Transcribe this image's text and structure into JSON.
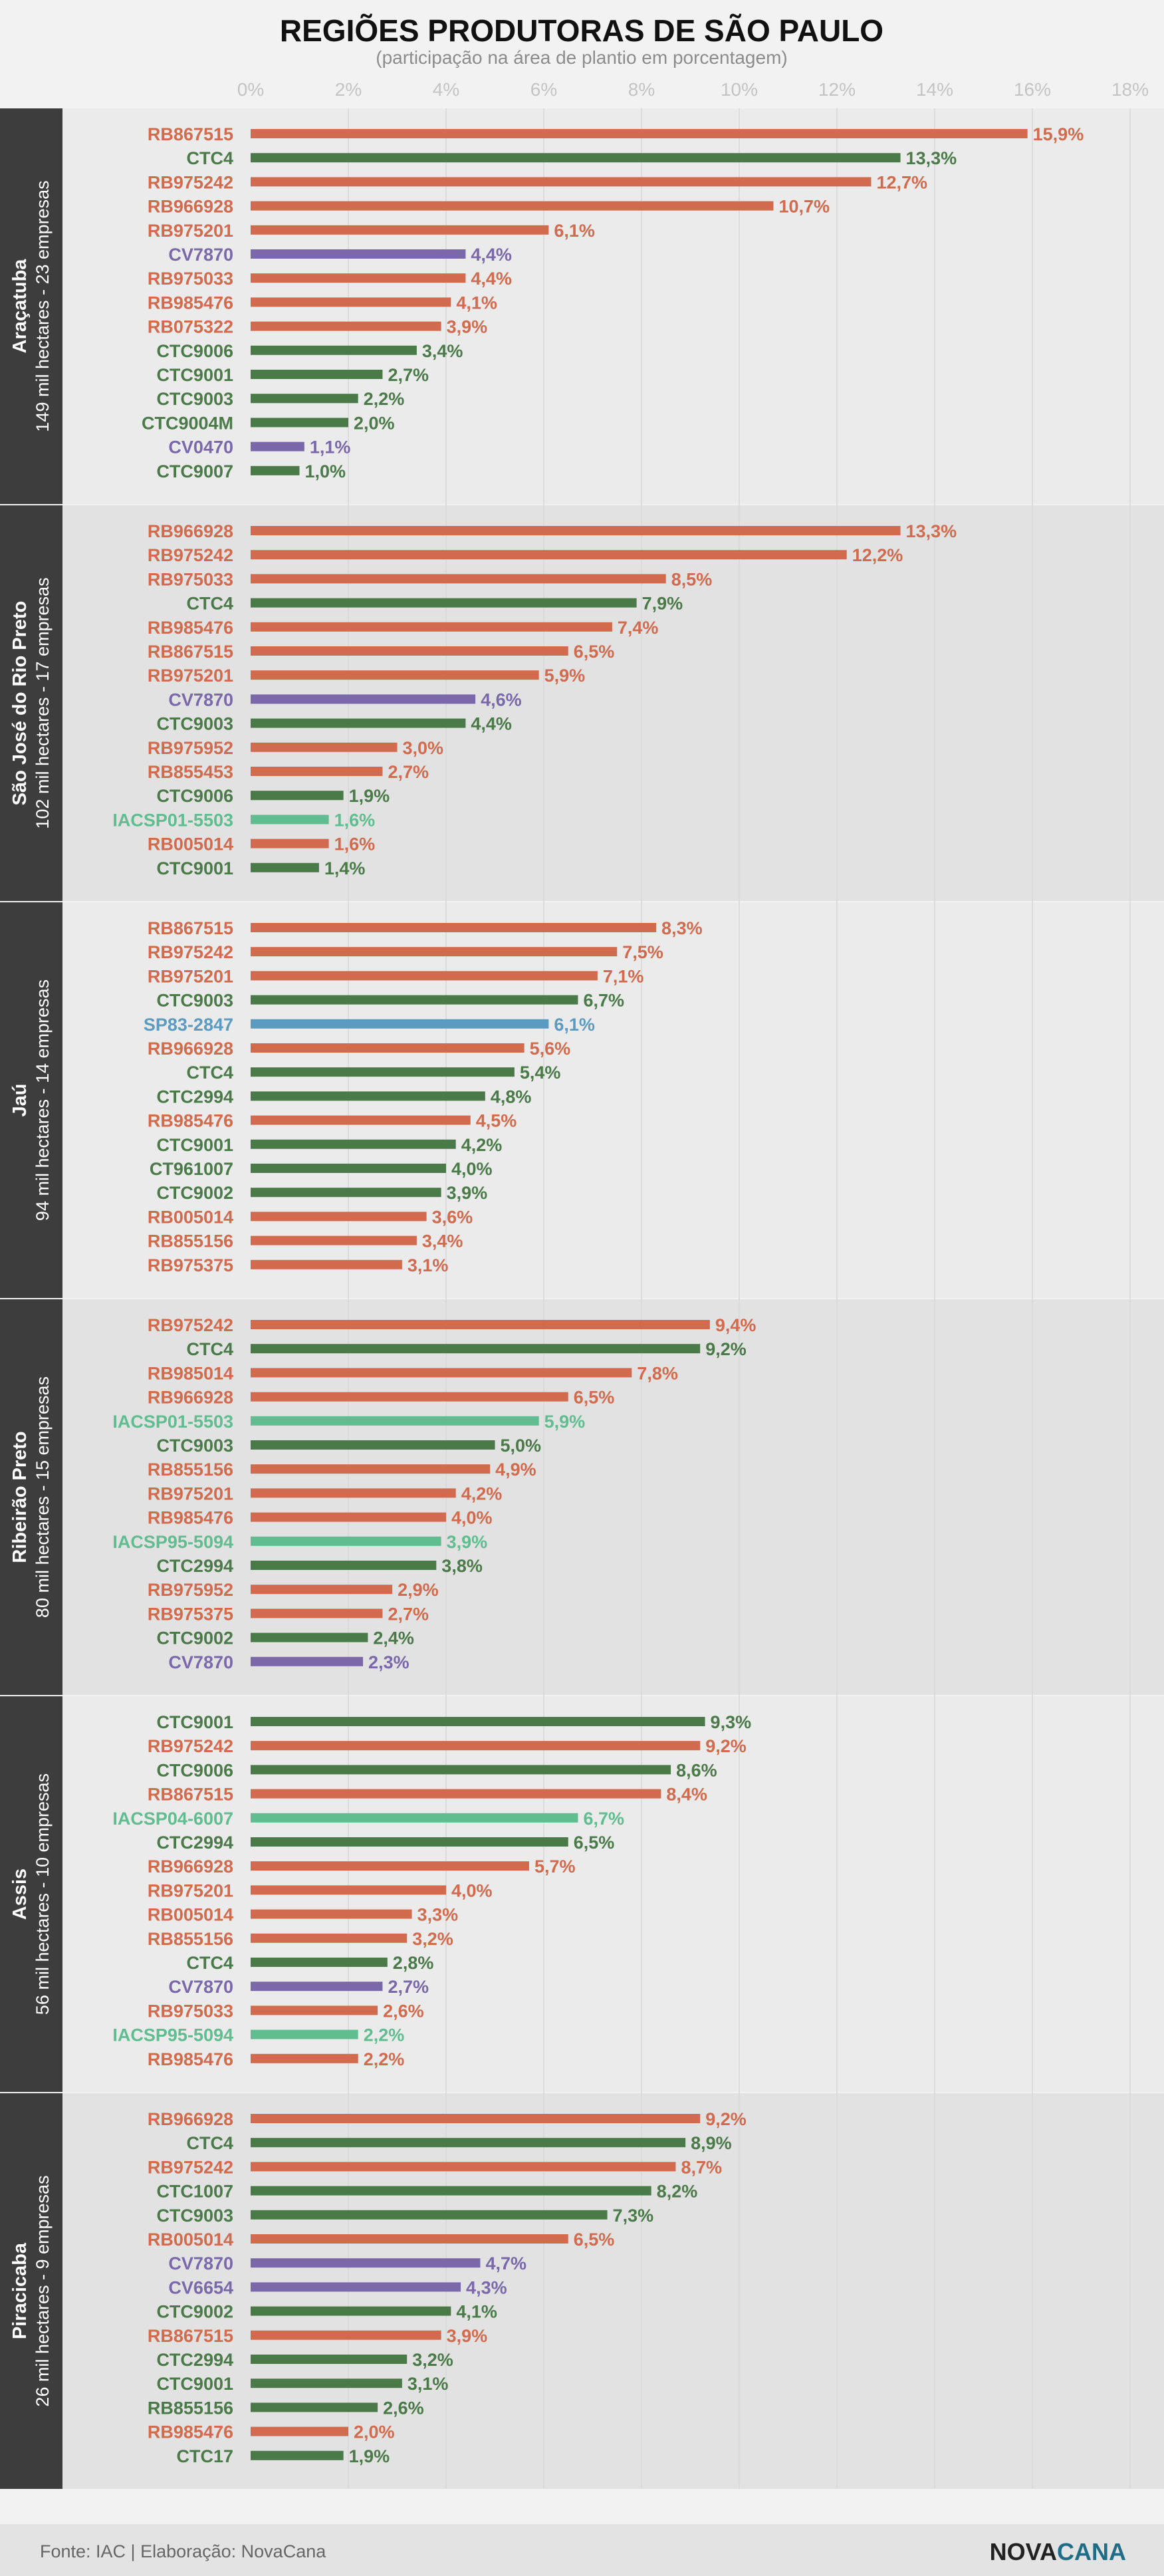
{
  "title": "REGIÕES PRODUTORAS DE SÃO PAULO",
  "subtitle": "(participação na área de plantio em porcentagem)",
  "footer": {
    "source": "Fonte: IAC | Elaboração: NovaCana",
    "logo_part1": "NOVA",
    "logo_part2": "CANA"
  },
  "colors": {
    "orange": "#d26b4e",
    "green": "#4a7a48",
    "purple": "#7b68aa",
    "blue": "#5b9bc1",
    "teal": "#5fbd8f",
    "sidebar": "#3d3d3d",
    "panel_light": "#ebebeb",
    "panel_dark": "#e2e2e2",
    "page_bg": "#f2f2f2",
    "footer_bg": "#e3e3e3"
  },
  "chart_data": {
    "type": "bar",
    "orientation": "horizontal",
    "x_ticks": [
      "0%",
      "2%",
      "4%",
      "6%",
      "8%",
      "10%",
      "12%",
      "14%",
      "16%",
      "18%"
    ],
    "xlim": [
      0,
      18
    ],
    "grid": true,
    "panels": [
      {
        "region": "Araçatuba",
        "info": "149 mil hectares - 23 empresas",
        "bars": [
          {
            "label": "RB867515",
            "value": 15.9,
            "value_label": "15,9%",
            "color": "orange"
          },
          {
            "label": "CTC4",
            "value": 13.3,
            "value_label": "13,3%",
            "color": "green"
          },
          {
            "label": "RB975242",
            "value": 12.7,
            "value_label": "12,7%",
            "color": "orange"
          },
          {
            "label": "RB966928",
            "value": 10.7,
            "value_label": "10,7%",
            "color": "orange"
          },
          {
            "label": "RB975201",
            "value": 6.1,
            "value_label": "6,1%",
            "color": "orange"
          },
          {
            "label": "CV7870",
            "value": 4.4,
            "value_label": "4,4%",
            "color": "purple"
          },
          {
            "label": "RB975033",
            "value": 4.4,
            "value_label": "4,4%",
            "color": "orange"
          },
          {
            "label": "RB985476",
            "value": 4.1,
            "value_label": "4,1%",
            "color": "orange"
          },
          {
            "label": "RB075322",
            "value": 3.9,
            "value_label": "3,9%",
            "color": "orange"
          },
          {
            "label": "CTC9006",
            "value": 3.4,
            "value_label": "3,4%",
            "color": "green"
          },
          {
            "label": "CTC9001",
            "value": 2.7,
            "value_label": "2,7%",
            "color": "green"
          },
          {
            "label": "CTC9003",
            "value": 2.2,
            "value_label": "2,2%",
            "color": "green"
          },
          {
            "label": "CTC9004M",
            "value": 2.0,
            "value_label": "2,0%",
            "color": "green"
          },
          {
            "label": "CV0470",
            "value": 1.1,
            "value_label": "1,1%",
            "color": "purple"
          },
          {
            "label": "CTC9007",
            "value": 1.0,
            "value_label": "1,0%",
            "color": "green"
          }
        ]
      },
      {
        "region": "São José do Rio Preto",
        "info": "102 mil hectares - 17 empresas",
        "bars": [
          {
            "label": "RB966928",
            "value": 13.3,
            "value_label": "13,3%",
            "color": "orange"
          },
          {
            "label": "RB975242",
            "value": 12.2,
            "value_label": "12,2%",
            "color": "orange"
          },
          {
            "label": "RB975033",
            "value": 8.5,
            "value_label": "8,5%",
            "color": "orange"
          },
          {
            "label": "CTC4",
            "value": 7.9,
            "value_label": "7,9%",
            "color": "green"
          },
          {
            "label": "RB985476",
            "value": 7.4,
            "value_label": "7,4%",
            "color": "orange"
          },
          {
            "label": "RB867515",
            "value": 6.5,
            "value_label": "6,5%",
            "color": "orange"
          },
          {
            "label": "RB975201",
            "value": 5.9,
            "value_label": "5,9%",
            "color": "orange"
          },
          {
            "label": "CV7870",
            "value": 4.6,
            "value_label": "4,6%",
            "color": "purple"
          },
          {
            "label": "CTC9003",
            "value": 4.4,
            "value_label": "4,4%",
            "color": "green"
          },
          {
            "label": "RB975952",
            "value": 3.0,
            "value_label": "3,0%",
            "color": "orange"
          },
          {
            "label": "RB855453",
            "value": 2.7,
            "value_label": "2,7%",
            "color": "orange"
          },
          {
            "label": "CTC9006",
            "value": 1.9,
            "value_label": "1,9%",
            "color": "green"
          },
          {
            "label": "IACSP01-5503",
            "value": 1.6,
            "value_label": "1,6%",
            "color": "teal"
          },
          {
            "label": "RB005014",
            "value": 1.6,
            "value_label": "1,6%",
            "color": "orange"
          },
          {
            "label": "CTC9001",
            "value": 1.4,
            "value_label": "1,4%",
            "color": "green"
          }
        ]
      },
      {
        "region": "Jaú",
        "info": "94 mil hectares - 14 empresas",
        "bars": [
          {
            "label": "RB867515",
            "value": 8.3,
            "value_label": "8,3%",
            "color": "orange"
          },
          {
            "label": "RB975242",
            "value": 7.5,
            "value_label": "7,5%",
            "color": "orange"
          },
          {
            "label": "RB975201",
            "value": 7.1,
            "value_label": "7,1%",
            "color": "orange"
          },
          {
            "label": "CTC9003",
            "value": 6.7,
            "value_label": "6,7%",
            "color": "green"
          },
          {
            "label": "SP83-2847",
            "value": 6.1,
            "value_label": "6,1%",
            "color": "blue"
          },
          {
            "label": "RB966928",
            "value": 5.6,
            "value_label": "5,6%",
            "color": "orange"
          },
          {
            "label": "CTC4",
            "value": 5.4,
            "value_label": "5,4%",
            "color": "green"
          },
          {
            "label": "CTC2994",
            "value": 4.8,
            "value_label": "4,8%",
            "color": "green"
          },
          {
            "label": "RB985476",
            "value": 4.5,
            "value_label": "4,5%",
            "color": "orange"
          },
          {
            "label": "CTC9001",
            "value": 4.2,
            "value_label": "4,2%",
            "color": "green"
          },
          {
            "label": "CT961007",
            "value": 4.0,
            "value_label": "4,0%",
            "color": "green"
          },
          {
            "label": "CTC9002",
            "value": 3.9,
            "value_label": "3,9%",
            "color": "green"
          },
          {
            "label": "RB005014",
            "value": 3.6,
            "value_label": "3,6%",
            "color": "orange"
          },
          {
            "label": "RB855156",
            "value": 3.4,
            "value_label": "3,4%",
            "color": "orange"
          },
          {
            "label": "RB975375",
            "value": 3.1,
            "value_label": "3,1%",
            "color": "orange"
          }
        ]
      },
      {
        "region": "Ribeirão Preto",
        "info": "80 mil hectares - 15 empresas",
        "bars": [
          {
            "label": "RB975242",
            "value": 9.4,
            "value_label": "9,4%",
            "color": "orange"
          },
          {
            "label": "CTC4",
            "value": 9.2,
            "value_label": "9,2%",
            "color": "green"
          },
          {
            "label": "RB985014",
            "value": 7.8,
            "value_label": "7,8%",
            "color": "orange"
          },
          {
            "label": "RB966928",
            "value": 6.5,
            "value_label": "6,5%",
            "color": "orange"
          },
          {
            "label": "IACSP01-5503",
            "value": 5.9,
            "value_label": "5,9%",
            "color": "teal"
          },
          {
            "label": "CTC9003",
            "value": 5.0,
            "value_label": "5,0%",
            "color": "green"
          },
          {
            "label": "RB855156",
            "value": 4.9,
            "value_label": "4,9%",
            "color": "orange"
          },
          {
            "label": "RB975201",
            "value": 4.2,
            "value_label": "4,2%",
            "color": "orange"
          },
          {
            "label": "RB985476",
            "value": 4.0,
            "value_label": "4,0%",
            "color": "orange"
          },
          {
            "label": "IACSP95-5094",
            "value": 3.9,
            "value_label": "3,9%",
            "color": "teal"
          },
          {
            "label": "CTC2994",
            "value": 3.8,
            "value_label": "3,8%",
            "color": "green"
          },
          {
            "label": "RB975952",
            "value": 2.9,
            "value_label": "2,9%",
            "color": "orange"
          },
          {
            "label": "RB975375",
            "value": 2.7,
            "value_label": "2,7%",
            "color": "orange"
          },
          {
            "label": "CTC9002",
            "value": 2.4,
            "value_label": "2,4%",
            "color": "green"
          },
          {
            "label": "CV7870",
            "value": 2.3,
            "value_label": "2,3%",
            "color": "purple"
          }
        ]
      },
      {
        "region": "Assis",
        "info": "56 mil hectares - 10 empresas",
        "bars": [
          {
            "label": "CTC9001",
            "value": 9.3,
            "value_label": "9,3%",
            "color": "green"
          },
          {
            "label": "RB975242",
            "value": 9.2,
            "value_label": "9,2%",
            "color": "orange"
          },
          {
            "label": "CTC9006",
            "value": 8.6,
            "value_label": "8,6%",
            "color": "green"
          },
          {
            "label": "RB867515",
            "value": 8.4,
            "value_label": "8,4%",
            "color": "orange"
          },
          {
            "label": "IACSP04-6007",
            "value": 6.7,
            "value_label": "6,7%",
            "color": "teal"
          },
          {
            "label": "CTC2994",
            "value": 6.5,
            "value_label": "6,5%",
            "color": "green"
          },
          {
            "label": "RB966928",
            "value": 5.7,
            "value_label": "5,7%",
            "color": "orange"
          },
          {
            "label": "RB975201",
            "value": 4.0,
            "value_label": "4,0%",
            "color": "orange"
          },
          {
            "label": "RB005014",
            "value": 3.3,
            "value_label": "3,3%",
            "color": "orange"
          },
          {
            "label": "RB855156",
            "value": 3.2,
            "value_label": "3,2%",
            "color": "orange"
          },
          {
            "label": "CTC4",
            "value": 2.8,
            "value_label": "2,8%",
            "color": "green"
          },
          {
            "label": "CV7870",
            "value": 2.7,
            "value_label": "2,7%",
            "color": "purple"
          },
          {
            "label": "RB975033",
            "value": 2.6,
            "value_label": "2,6%",
            "color": "orange"
          },
          {
            "label": "IACSP95-5094",
            "value": 2.2,
            "value_label": "2,2%",
            "color": "teal"
          },
          {
            "label": "RB985476",
            "value": 2.2,
            "value_label": "2,2%",
            "color": "orange"
          }
        ]
      },
      {
        "region": "Piracicaba",
        "info": "26 mil hectares - 9 empresas",
        "bars": [
          {
            "label": "RB966928",
            "value": 9.2,
            "value_label": "9,2%",
            "color": "orange"
          },
          {
            "label": "CTC4",
            "value": 8.9,
            "value_label": "8,9%",
            "color": "green"
          },
          {
            "label": "RB975242",
            "value": 8.7,
            "value_label": "8,7%",
            "color": "orange"
          },
          {
            "label": "CTC1007",
            "value": 8.2,
            "value_label": "8,2%",
            "color": "green"
          },
          {
            "label": "CTC9003",
            "value": 7.3,
            "value_label": "7,3%",
            "color": "green"
          },
          {
            "label": "RB005014",
            "value": 6.5,
            "value_label": "6,5%",
            "color": "orange"
          },
          {
            "label": "CV7870",
            "value": 4.7,
            "value_label": "4,7%",
            "color": "purple"
          },
          {
            "label": "CV6654",
            "value": 4.3,
            "value_label": "4,3%",
            "color": "purple"
          },
          {
            "label": "CTC9002",
            "value": 4.1,
            "value_label": "4,1%",
            "color": "green"
          },
          {
            "label": "RB867515",
            "value": 3.9,
            "value_label": "3,9%",
            "color": "orange"
          },
          {
            "label": "CTC2994",
            "value": 3.2,
            "value_label": "3,2%",
            "color": "green"
          },
          {
            "label": "CTC9001",
            "value": 3.1,
            "value_label": "3,1%",
            "color": "green"
          },
          {
            "label": "RB855156",
            "value": 2.6,
            "value_label": "2,6%",
            "color": "green"
          },
          {
            "label": "RB985476",
            "value": 2.0,
            "value_label": "2,0%",
            "color": "orange"
          },
          {
            "label": "CTC17",
            "value": 1.9,
            "value_label": "1,9%",
            "color": "green"
          }
        ]
      }
    ]
  }
}
